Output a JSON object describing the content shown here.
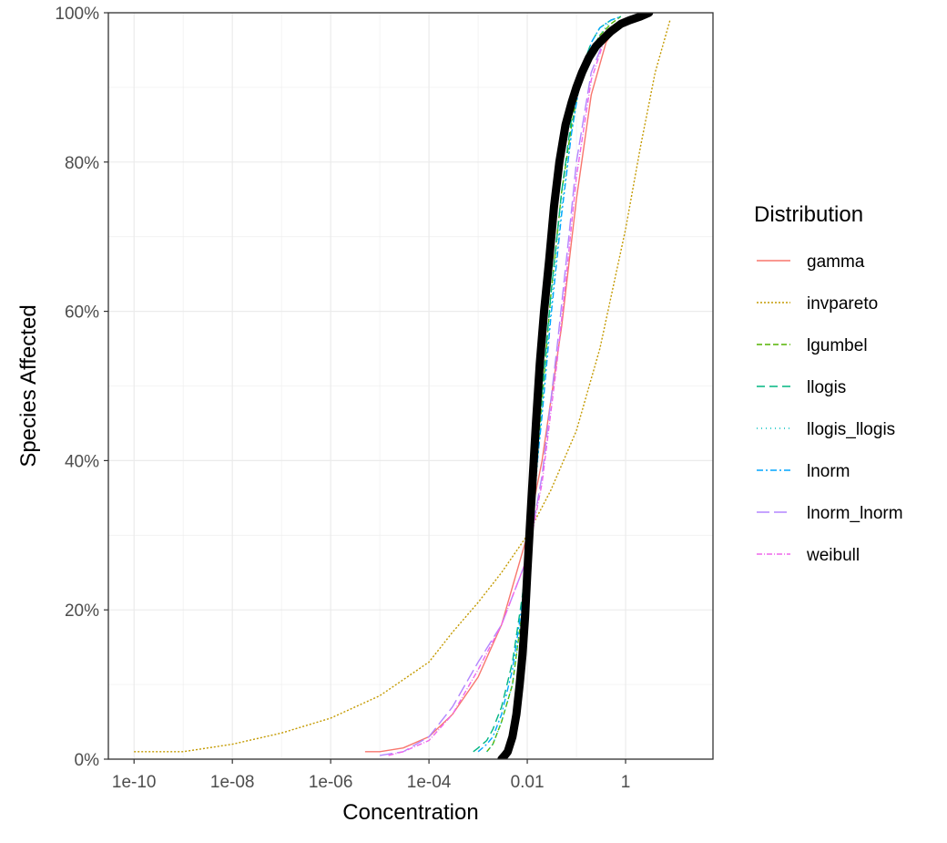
{
  "chart_data": {
    "type": "line",
    "xlabel": "Concentration",
    "ylabel": "Species Affected",
    "x_scale": "log10",
    "xlim": [
      3e-11,
      60
    ],
    "ylim": [
      0,
      1
    ],
    "x_ticks": [
      {
        "value": 1e-10,
        "label": "1e-10"
      },
      {
        "value": 1e-08,
        "label": "1e-08"
      },
      {
        "value": 1e-06,
        "label": "1e-06"
      },
      {
        "value": 0.0001,
        "label": "1e-04"
      },
      {
        "value": 0.01,
        "label": "0.01"
      },
      {
        "value": 1,
        "label": "1"
      }
    ],
    "y_ticks": [
      {
        "value": 0,
        "label": "0%"
      },
      {
        "value": 0.2,
        "label": "20%"
      },
      {
        "value": 0.4,
        "label": "40%"
      },
      {
        "value": 0.6,
        "label": "60%"
      },
      {
        "value": 0.8,
        "label": "80%"
      },
      {
        "value": 1,
        "label": "100%"
      }
    ],
    "grid": true,
    "legend": {
      "title": "Distribution",
      "position": "right"
    },
    "series": [
      {
        "name": "gamma",
        "color": "#F8766D",
        "dash": "solid",
        "x": [
          5e-06,
          1e-05,
          3e-05,
          0.0001,
          0.0003,
          0.001,
          0.003,
          0.01,
          0.02,
          0.05,
          0.1,
          0.2,
          0.4,
          0.8
        ],
        "y": [
          0.01,
          0.01,
          0.015,
          0.03,
          0.06,
          0.11,
          0.18,
          0.3,
          0.4,
          0.58,
          0.75,
          0.89,
          0.96,
          0.99
        ]
      },
      {
        "name": "invpareto",
        "color": "#C49A00",
        "dash": "2,2",
        "x": [
          1e-10,
          1e-09,
          1e-08,
          1e-07,
          1e-06,
          1e-05,
          0.0001,
          0.0003,
          0.001,
          0.003,
          0.01,
          0.03,
          0.1,
          0.3,
          1,
          2,
          4,
          8
        ],
        "y": [
          0.01,
          0.01,
          0.02,
          0.035,
          0.055,
          0.085,
          0.13,
          0.17,
          0.21,
          0.25,
          0.3,
          0.36,
          0.44,
          0.55,
          0.71,
          0.82,
          0.92,
          0.99
        ]
      },
      {
        "name": "lgumbel",
        "color": "#53B400",
        "dash": "6,3",
        "x": [
          0.0015,
          0.002,
          0.003,
          0.005,
          0.01,
          0.015,
          0.02,
          0.03,
          0.05,
          0.08,
          0.12,
          0.2,
          0.3,
          0.5,
          0.8
        ],
        "y": [
          0.01,
          0.02,
          0.05,
          0.1,
          0.25,
          0.38,
          0.48,
          0.62,
          0.76,
          0.85,
          0.91,
          0.95,
          0.97,
          0.985,
          0.995
        ]
      },
      {
        "name": "llogis",
        "color": "#00B680",
        "dash": "9,5",
        "x": [
          0.0008,
          0.001,
          0.0015,
          0.002,
          0.003,
          0.005,
          0.008,
          0.01,
          0.015,
          0.02,
          0.03,
          0.05,
          0.08,
          0.12,
          0.2,
          0.3,
          0.5,
          0.8
        ],
        "y": [
          0.01,
          0.015,
          0.025,
          0.04,
          0.07,
          0.13,
          0.22,
          0.28,
          0.4,
          0.49,
          0.62,
          0.76,
          0.86,
          0.92,
          0.96,
          0.98,
          0.99,
          0.995
        ]
      },
      {
        "name": "llogis_llogis",
        "color": "#00C1C1",
        "dash": "1,4",
        "x": [
          0.0015,
          0.002,
          0.003,
          0.005,
          0.01,
          0.015,
          0.02,
          0.03,
          0.05,
          0.08,
          0.12,
          0.2,
          0.3,
          0.5
        ],
        "y": [
          0.01,
          0.02,
          0.05,
          0.1,
          0.25,
          0.37,
          0.47,
          0.6,
          0.74,
          0.84,
          0.91,
          0.95,
          0.97,
          0.99
        ]
      },
      {
        "name": "lnorm",
        "color": "#00A6FF",
        "dash": "7,3,2,3",
        "x": [
          0.001,
          0.0015,
          0.002,
          0.003,
          0.005,
          0.008,
          0.01,
          0.015,
          0.02,
          0.03,
          0.05,
          0.08,
          0.12,
          0.2,
          0.3,
          0.5,
          0.8
        ],
        "y": [
          0.01,
          0.02,
          0.03,
          0.06,
          0.12,
          0.21,
          0.27,
          0.38,
          0.46,
          0.59,
          0.73,
          0.84,
          0.91,
          0.96,
          0.98,
          0.99,
          0.995
        ]
      },
      {
        "name": "lnorm_lnorm",
        "color": "#B385FF",
        "dash": "14,5",
        "x": [
          1e-05,
          3e-05,
          0.0001,
          0.0003,
          0.001,
          0.003,
          0.01,
          0.02,
          0.04,
          0.07,
          0.1,
          0.2,
          0.4,
          0.8
        ],
        "y": [
          0.005,
          0.01,
          0.03,
          0.07,
          0.13,
          0.18,
          0.27,
          0.38,
          0.55,
          0.7,
          0.8,
          0.92,
          0.97,
          0.99
        ]
      },
      {
        "name": "weibull",
        "color": "#EF67EB",
        "dash": "6,2,1,2",
        "x": [
          1.5e-05,
          3e-05,
          0.0001,
          0.0003,
          0.001,
          0.003,
          0.01,
          0.02,
          0.04,
          0.07,
          0.1,
          0.2,
          0.4,
          0.8
        ],
        "y": [
          0.005,
          0.01,
          0.025,
          0.06,
          0.12,
          0.18,
          0.27,
          0.37,
          0.53,
          0.68,
          0.78,
          0.91,
          0.97,
          0.99
        ]
      }
    ],
    "empirical": {
      "color": "#000000",
      "x": [
        0.003,
        0.0035,
        0.004,
        0.005,
        0.006,
        0.007,
        0.008,
        0.009,
        0.01,
        0.0115,
        0.013,
        0.015,
        0.018,
        0.022,
        0.028,
        0.035,
        0.045,
        0.06,
        0.08,
        0.1,
        0.13,
        0.18,
        0.25,
        0.35,
        0.5,
        0.8,
        1.2,
        2,
        3
      ],
      "y": [
        0.0,
        0.005,
        0.01,
        0.03,
        0.06,
        0.1,
        0.14,
        0.19,
        0.25,
        0.32,
        0.38,
        0.45,
        0.53,
        0.6,
        0.67,
        0.74,
        0.8,
        0.85,
        0.88,
        0.9,
        0.92,
        0.94,
        0.955,
        0.965,
        0.975,
        0.985,
        0.99,
        0.995,
        1.0
      ]
    }
  }
}
